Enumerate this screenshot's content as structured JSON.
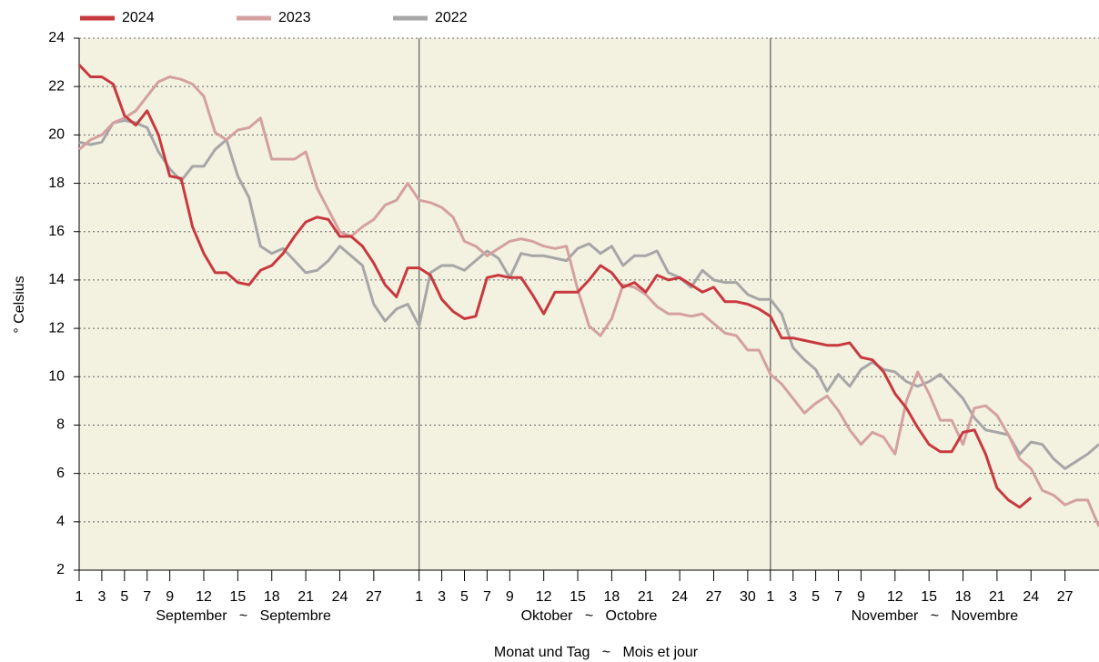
{
  "chart_data": {
    "type": "line",
    "y_label": "° Celsius",
    "x_label": "Monat und Tag   ~   Mois et jour",
    "x": [
      1,
      2,
      3,
      4,
      5,
      6,
      7,
      8,
      9,
      10,
      11,
      12,
      13,
      14,
      15,
      16,
      17,
      18,
      19,
      20,
      21,
      22,
      23,
      24,
      25,
      26,
      27,
      28,
      29,
      30,
      31,
      32,
      33,
      34,
      35,
      36,
      37,
      38,
      39,
      40,
      41,
      42,
      43,
      44,
      45,
      46,
      47,
      48,
      49,
      50,
      51,
      52,
      53,
      54,
      55,
      56,
      57,
      58,
      59,
      60,
      61,
      62,
      63,
      64,
      65,
      66,
      67,
      68,
      69,
      70,
      71,
      72,
      73,
      74,
      75,
      76,
      77,
      78,
      79,
      80,
      81,
      82,
      83,
      84,
      85,
      86,
      87,
      88,
      89,
      90,
      91
    ],
    "series": [
      {
        "name": "2024",
        "color": "#c8393f",
        "width": 3,
        "values": [
          22.9,
          22.4,
          22.4,
          22.1,
          20.8,
          20.4,
          21.0,
          20.0,
          18.3,
          18.2,
          16.2,
          15.1,
          14.3,
          14.3,
          13.9,
          13.8,
          14.4,
          14.6,
          15.1,
          15.8,
          16.4,
          16.6,
          16.5,
          15.8,
          15.8,
          15.4,
          14.7,
          13.8,
          13.3,
          14.5,
          14.5,
          14.2,
          13.2,
          12.7,
          12.4,
          12.5,
          14.1,
          14.2,
          14.1,
          14.1,
          13.4,
          12.6,
          13.5,
          13.5,
          13.5,
          14.0,
          14.6,
          14.3,
          13.7,
          13.9,
          13.5,
          14.2,
          14.0,
          14.1,
          13.8,
          13.5,
          13.7,
          13.1,
          13.1,
          13.0,
          12.8,
          12.5,
          11.6,
          11.6,
          11.5,
          11.4,
          11.3,
          11.3,
          11.4,
          10.8,
          10.7,
          10.2,
          9.3,
          8.7,
          7.9,
          7.2,
          6.9,
          6.9,
          7.7,
          7.8,
          6.8,
          5.4,
          4.9,
          4.6,
          5.0,
          null,
          null,
          null,
          null,
          null,
          null
        ]
      },
      {
        "name": "2023",
        "color": "#d4a0a0",
        "width": 3,
        "values": [
          19.4,
          19.8,
          20.0,
          20.5,
          20.7,
          21.0,
          21.6,
          22.2,
          22.4,
          22.3,
          22.1,
          21.6,
          20.1,
          19.8,
          20.2,
          20.3,
          20.7,
          19.0,
          19.0,
          19.0,
          19.3,
          17.8,
          16.9,
          16.0,
          15.8,
          16.2,
          16.5,
          17.1,
          17.3,
          18.0,
          17.3,
          17.2,
          17.0,
          16.6,
          15.6,
          15.4,
          15.0,
          15.3,
          15.6,
          15.7,
          15.6,
          15.4,
          15.3,
          15.4,
          13.6,
          12.1,
          11.7,
          12.4,
          13.8,
          13.7,
          13.4,
          12.9,
          12.6,
          12.6,
          12.5,
          12.6,
          12.2,
          11.8,
          11.7,
          11.1,
          11.1,
          10.1,
          9.7,
          9.1,
          8.5,
          8.9,
          9.2,
          8.6,
          7.8,
          7.2,
          7.7,
          7.5,
          6.8,
          9.0,
          10.2,
          9.3,
          8.2,
          8.2,
          7.2,
          8.7,
          8.8,
          8.4,
          7.6,
          6.6,
          6.2,
          5.3,
          5.1,
          4.7,
          4.9,
          4.9,
          3.8
        ]
      },
      {
        "name": "2022",
        "color": "#a6a6a6",
        "width": 3,
        "values": [
          19.7,
          19.6,
          19.7,
          20.5,
          20.6,
          20.5,
          20.3,
          19.3,
          18.6,
          18.1,
          18.7,
          18.7,
          19.4,
          19.8,
          18.3,
          17.4,
          15.4,
          15.1,
          15.3,
          14.8,
          14.3,
          14.4,
          14.8,
          15.4,
          15.0,
          14.6,
          13.0,
          12.3,
          12.8,
          13.0,
          12.1,
          14.3,
          14.6,
          14.6,
          14.4,
          14.8,
          15.2,
          14.9,
          14.1,
          15.1,
          15.0,
          15.0,
          14.9,
          14.8,
          15.3,
          15.5,
          15.1,
          15.4,
          14.6,
          15.0,
          15.0,
          15.2,
          14.3,
          14.1,
          13.7,
          14.4,
          14.0,
          13.9,
          13.9,
          13.4,
          13.2,
          13.2,
          12.6,
          11.2,
          10.7,
          10.3,
          9.4,
          10.1,
          9.6,
          10.3,
          10.6,
          10.3,
          10.2,
          9.8,
          9.6,
          9.8,
          10.1,
          9.6,
          9.1,
          8.3,
          7.8,
          7.7,
          7.6,
          6.8,
          7.3,
          7.2,
          6.6,
          6.2,
          6.5,
          6.8,
          7.2
        ]
      }
    ],
    "xlim": [
      1,
      91
    ],
    "ylim": [
      2,
      24
    ],
    "yticks": [
      2,
      4,
      6,
      8,
      10,
      12,
      14,
      16,
      18,
      20,
      22,
      24
    ],
    "xticks": [
      {
        "value": 1,
        "label": "1"
      },
      {
        "value": 3,
        "label": "3"
      },
      {
        "value": 5,
        "label": "5"
      },
      {
        "value": 7,
        "label": "7"
      },
      {
        "value": 9,
        "label": "9"
      },
      {
        "value": 12,
        "label": "12"
      },
      {
        "value": 15,
        "label": "15"
      },
      {
        "value": 18,
        "label": "18"
      },
      {
        "value": 21,
        "label": "21"
      },
      {
        "value": 24,
        "label": "24"
      },
      {
        "value": 27,
        "label": "27"
      },
      {
        "value": 31,
        "label": "1"
      },
      {
        "value": 33,
        "label": "3"
      },
      {
        "value": 35,
        "label": "5"
      },
      {
        "value": 37,
        "label": "7"
      },
      {
        "value": 39,
        "label": "9"
      },
      {
        "value": 42,
        "label": "12"
      },
      {
        "value": 45,
        "label": "15"
      },
      {
        "value": 48,
        "label": "18"
      },
      {
        "value": 51,
        "label": "21"
      },
      {
        "value": 54,
        "label": "24"
      },
      {
        "value": 57,
        "label": "27"
      },
      {
        "value": 60,
        "label": "30"
      },
      {
        "value": 62,
        "label": "1"
      },
      {
        "value": 64,
        "label": "3"
      },
      {
        "value": 66,
        "label": "5"
      },
      {
        "value": 68,
        "label": "7"
      },
      {
        "value": 70,
        "label": "9"
      },
      {
        "value": 73,
        "label": "12"
      },
      {
        "value": 76,
        "label": "15"
      },
      {
        "value": 79,
        "label": "18"
      },
      {
        "value": 82,
        "label": "21"
      },
      {
        "value": 85,
        "label": "24"
      },
      {
        "value": 88,
        "label": "27"
      }
    ],
    "months": [
      {
        "label": "September   ~   Septembre",
        "start": 1,
        "end": 30
      },
      {
        "label": "Oktober   ~   Octobre",
        "start": 31,
        "end": 61
      },
      {
        "label": "November   ~   Novembre",
        "start": 62,
        "end": 91
      }
    ],
    "grid": true,
    "legend": "top"
  }
}
